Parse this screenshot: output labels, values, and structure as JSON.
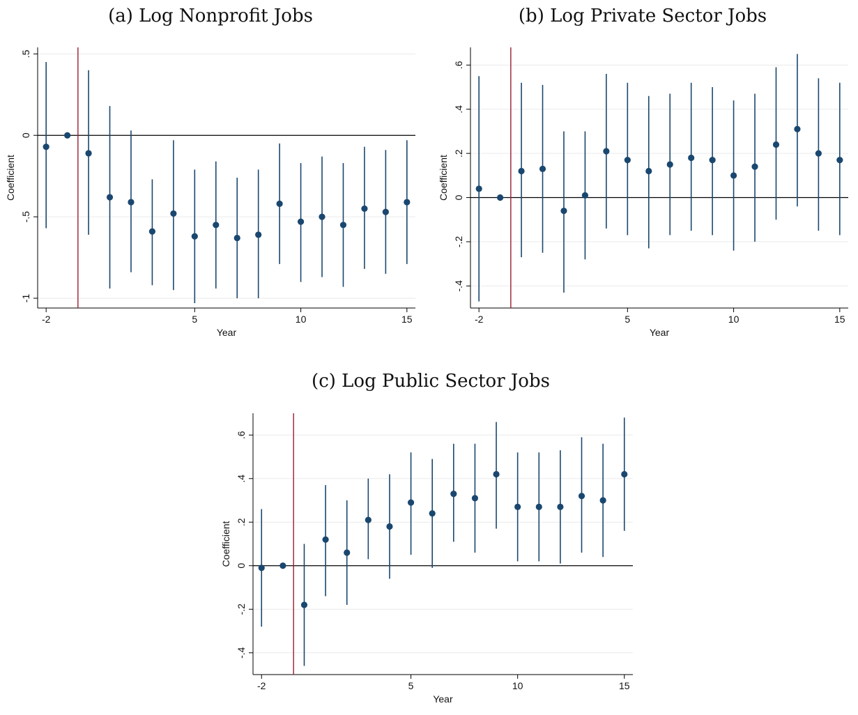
{
  "colors": {
    "marker": "#1a476f",
    "ci_line": "#1a476f",
    "zero_line": "#000000",
    "event_line": "#9b1c31",
    "grid": "#eaeaea",
    "axis": "#000000"
  },
  "chart_data": [
    {
      "type": "scatter",
      "title": "(a) Log Nonprofit Jobs",
      "xlabel": "Year",
      "ylabel": "Coefficient",
      "x_ticks": [
        -2,
        5,
        10,
        15
      ],
      "x_tick_labels": [
        "-2",
        "5",
        "10",
        "15"
      ],
      "y_ticks": [
        -1,
        -0.5,
        0,
        0.5
      ],
      "y_tick_labels": [
        "-1",
        "-.5",
        "0",
        ".5"
      ],
      "xlim": [
        -2.4,
        15.4
      ],
      "ylim": [
        -1.06,
        0.54
      ],
      "grid": true,
      "reference_lines": {
        "horizontal": 0,
        "vertical": -0.5
      },
      "series": [
        {
          "x": [
            -2,
            -1,
            0,
            1,
            2,
            3,
            4,
            5,
            6,
            7,
            8,
            9,
            10,
            11,
            12,
            13,
            14,
            15
          ],
          "y": [
            -0.07,
            0.0,
            -0.11,
            -0.38,
            -0.41,
            -0.59,
            -0.48,
            -0.62,
            -0.55,
            -0.63,
            -0.61,
            -0.42,
            -0.53,
            -0.5,
            -0.55,
            -0.45,
            -0.47,
            -0.41
          ],
          "ci_low": [
            -0.57,
            0.0,
            -0.61,
            -0.94,
            -0.84,
            -0.92,
            -0.95,
            -1.03,
            -0.94,
            -1.0,
            -1.0,
            -0.79,
            -0.9,
            -0.87,
            -0.93,
            -0.82,
            -0.85,
            -0.79
          ],
          "ci_high": [
            0.45,
            0.0,
            0.4,
            0.18,
            0.03,
            -0.27,
            -0.03,
            -0.21,
            -0.16,
            -0.26,
            -0.21,
            -0.05,
            -0.17,
            -0.13,
            -0.17,
            -0.07,
            -0.09,
            -0.03
          ]
        }
      ]
    },
    {
      "type": "scatter",
      "title": "(b) Log Private Sector Jobs",
      "xlabel": "Year",
      "ylabel": "Coefficient",
      "x_ticks": [
        -2,
        5,
        10,
        15
      ],
      "x_tick_labels": [
        "-2",
        "5",
        "10",
        "15"
      ],
      "y_ticks": [
        -0.4,
        -0.2,
        0,
        0.2,
        0.4,
        0.6
      ],
      "y_tick_labels": [
        "-.4",
        "-.2",
        "0",
        ".2",
        ".4",
        ".6"
      ],
      "xlim": [
        -2.4,
        15.4
      ],
      "ylim": [
        -0.5,
        0.68
      ],
      "grid": true,
      "reference_lines": {
        "horizontal": 0,
        "vertical": -0.5
      },
      "series": [
        {
          "x": [
            -2,
            -1,
            0,
            1,
            2,
            3,
            4,
            5,
            6,
            7,
            8,
            9,
            10,
            11,
            12,
            13,
            14,
            15
          ],
          "y": [
            0.04,
            0.0,
            0.12,
            0.13,
            -0.06,
            0.01,
            0.21,
            0.17,
            0.12,
            0.15,
            0.18,
            0.17,
            0.1,
            0.14,
            0.24,
            0.31,
            0.2,
            0.17
          ],
          "ci_low": [
            -0.47,
            0.0,
            -0.27,
            -0.25,
            -0.43,
            -0.28,
            -0.14,
            -0.17,
            -0.23,
            -0.17,
            -0.15,
            -0.17,
            -0.24,
            -0.2,
            -0.1,
            -0.04,
            -0.15,
            -0.17
          ],
          "ci_high": [
            0.55,
            0.0,
            0.52,
            0.51,
            0.3,
            0.3,
            0.56,
            0.52,
            0.46,
            0.47,
            0.52,
            0.5,
            0.44,
            0.47,
            0.59,
            0.65,
            0.54,
            0.52
          ]
        }
      ]
    },
    {
      "type": "scatter",
      "title": "(c) Log Public Sector Jobs",
      "xlabel": "Year",
      "ylabel": "Coefficient",
      "x_ticks": [
        -2,
        5,
        10,
        15
      ],
      "x_tick_labels": [
        "-2",
        "5",
        "10",
        "15"
      ],
      "y_ticks": [
        -0.4,
        -0.2,
        0,
        0.2,
        0.4,
        0.6
      ],
      "y_tick_labels": [
        "-.4",
        "-.2",
        "0",
        ".2",
        ".4",
        ".6"
      ],
      "xlim": [
        -2.4,
        15.4
      ],
      "ylim": [
        -0.5,
        0.7
      ],
      "grid": true,
      "reference_lines": {
        "horizontal": 0,
        "vertical": -0.5
      },
      "series": [
        {
          "x": [
            -2,
            -1,
            0,
            1,
            2,
            3,
            4,
            5,
            6,
            7,
            8,
            9,
            10,
            11,
            12,
            13,
            14,
            15
          ],
          "y": [
            -0.01,
            0.0,
            -0.18,
            0.12,
            0.06,
            0.21,
            0.18,
            0.29,
            0.24,
            0.33,
            0.31,
            0.42,
            0.27,
            0.27,
            0.27,
            0.32,
            0.3,
            0.42
          ],
          "ci_low": [
            -0.28,
            0.0,
            -0.46,
            -0.14,
            -0.18,
            0.03,
            -0.06,
            0.05,
            -0.01,
            0.11,
            0.06,
            0.17,
            0.02,
            0.02,
            0.01,
            0.06,
            0.04,
            0.16
          ],
          "ci_high": [
            0.26,
            0.0,
            0.1,
            0.37,
            0.3,
            0.4,
            0.42,
            0.52,
            0.49,
            0.56,
            0.56,
            0.66,
            0.52,
            0.52,
            0.53,
            0.59,
            0.56,
            0.68
          ]
        }
      ]
    }
  ]
}
